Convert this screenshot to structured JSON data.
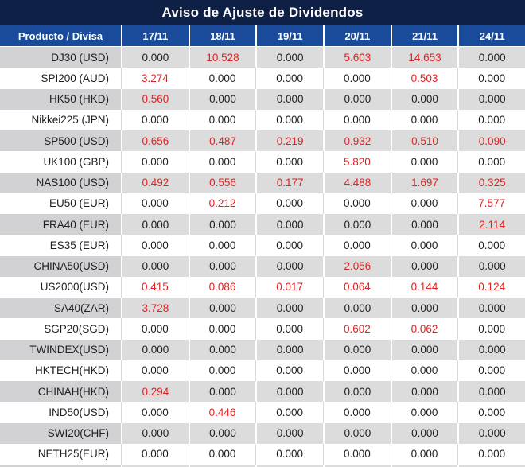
{
  "title": "Aviso de Ajuste de Dividendos",
  "colors": {
    "title_bar_bg": "#0e2045",
    "header_bg": "#1a4b9b",
    "negative_value_red": "#e02222",
    "row_stripe_gray": "#dcdcdc",
    "product_column_gray": "#d2d2d5"
  },
  "table": {
    "columns": [
      "Producto / Divisa",
      "17/11",
      "18/11",
      "19/11",
      "20/11",
      "21/11",
      "24/11"
    ],
    "rows": [
      {
        "product": "DJ30 (USD)",
        "values": [
          "0.000",
          "10.528",
          "0.000",
          "5.603",
          "14.653",
          "0.000"
        ]
      },
      {
        "product": "SPI200 (AUD)",
        "values": [
          "3.274",
          "0.000",
          "0.000",
          "0.000",
          "0.503",
          "0.000"
        ]
      },
      {
        "product": "HK50 (HKD)",
        "values": [
          "0.560",
          "0.000",
          "0.000",
          "0.000",
          "0.000",
          "0.000"
        ]
      },
      {
        "product": "Nikkei225 (JPN)",
        "values": [
          "0.000",
          "0.000",
          "0.000",
          "0.000",
          "0.000",
          "0.000"
        ]
      },
      {
        "product": "SP500 (USD)",
        "values": [
          "0.656",
          "0.487",
          "0.219",
          "0.932",
          "0.510",
          "0.090"
        ]
      },
      {
        "product": "UK100 (GBP)",
        "values": [
          "0.000",
          "0.000",
          "0.000",
          "5.820",
          "0.000",
          "0.000"
        ]
      },
      {
        "product": "NAS100 (USD)",
        "values": [
          "0.492",
          "0.556",
          "0.177",
          "4.488",
          "1.697",
          "0.325"
        ]
      },
      {
        "product": "EU50 (EUR)",
        "values": [
          "0.000",
          "0.212",
          "0.000",
          "0.000",
          "0.000",
          "7.577"
        ]
      },
      {
        "product": "FRA40 (EUR)",
        "values": [
          "0.000",
          "0.000",
          "0.000",
          "0.000",
          "0.000",
          "2.114"
        ]
      },
      {
        "product": "ES35 (EUR)",
        "values": [
          "0.000",
          "0.000",
          "0.000",
          "0.000",
          "0.000",
          "0.000"
        ]
      },
      {
        "product": "CHINA50(USD)",
        "values": [
          "0.000",
          "0.000",
          "0.000",
          "2.056",
          "0.000",
          "0.000"
        ]
      },
      {
        "product": "US2000(USD)",
        "values": [
          "0.415",
          "0.086",
          "0.017",
          "0.064",
          "0.144",
          "0.124"
        ]
      },
      {
        "product": "SA40(ZAR)",
        "values": [
          "3.728",
          "0.000",
          "0.000",
          "0.000",
          "0.000",
          "0.000"
        ]
      },
      {
        "product": "SGP20(SGD)",
        "values": [
          "0.000",
          "0.000",
          "0.000",
          "0.602",
          "0.062",
          "0.000"
        ]
      },
      {
        "product": "TWINDEX(USD)",
        "values": [
          "0.000",
          "0.000",
          "0.000",
          "0.000",
          "0.000",
          "0.000"
        ]
      },
      {
        "product": "HKTECH(HKD)",
        "values": [
          "0.000",
          "0.000",
          "0.000",
          "0.000",
          "0.000",
          "0.000"
        ]
      },
      {
        "product": "CHINAH(HKD)",
        "values": [
          "0.294",
          "0.000",
          "0.000",
          "0.000",
          "0.000",
          "0.000"
        ]
      },
      {
        "product": "IND50(USD)",
        "values": [
          "0.000",
          "0.446",
          "0.000",
          "0.000",
          "0.000",
          "0.000"
        ]
      },
      {
        "product": "SWI20(CHF)",
        "values": [
          "0.000",
          "0.000",
          "0.000",
          "0.000",
          "0.000",
          "0.000"
        ]
      },
      {
        "product": "NETH25(EUR)",
        "values": [
          "0.000",
          "0.000",
          "0.000",
          "0.000",
          "0.000",
          "0.000"
        ]
      }
    ]
  }
}
